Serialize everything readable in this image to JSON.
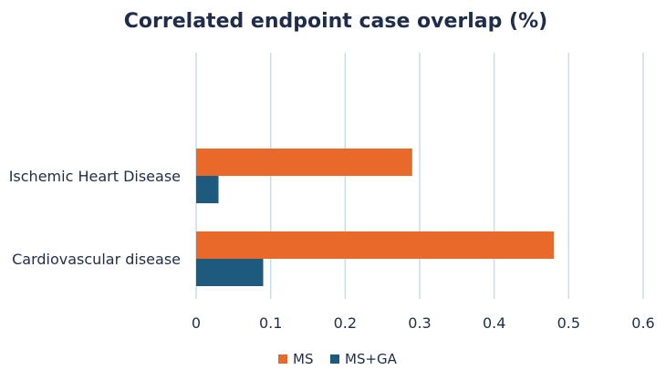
{
  "chart_data": {
    "type": "bar",
    "orientation": "horizontal",
    "title": "Correlated endpoint case overlap (%)",
    "categories": [
      "Ischemic Heart Disease",
      "Cardiovascular disease"
    ],
    "series": [
      {
        "name": "MS",
        "color": "#e8692a",
        "values": [
          0.29,
          0.48
        ]
      },
      {
        "name": "MS+GA",
        "color": "#1d5a7e",
        "values": [
          0.03,
          0.09
        ]
      }
    ],
    "xlim": [
      0,
      0.6
    ],
    "x_ticks": [
      "0",
      "0.1",
      "0.2",
      "0.3",
      "0.4",
      "0.5",
      "0.6"
    ],
    "grid": true,
    "legend_position": "bottom"
  }
}
